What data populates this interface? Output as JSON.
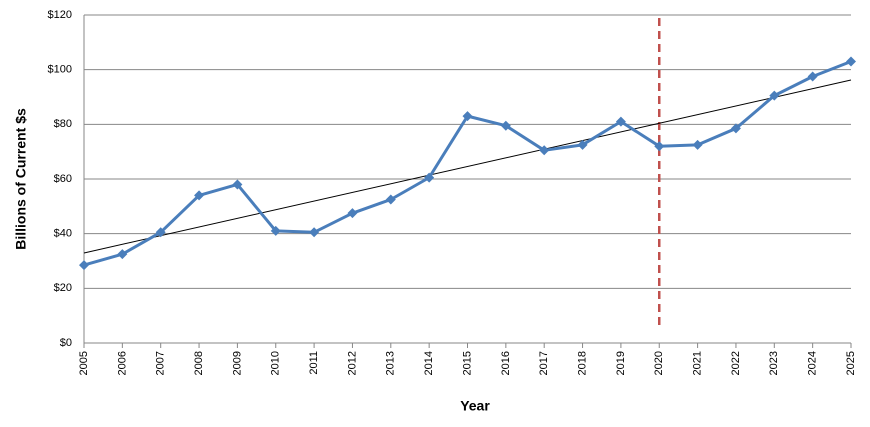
{
  "chart_data": {
    "type": "line",
    "x_label": "Year",
    "y_label": "Billions of Current $s",
    "categories": [
      "2005",
      "2006",
      "2007",
      "2008",
      "2009",
      "2010",
      "2011",
      "2012",
      "2013",
      "2014",
      "2015",
      "2016",
      "2017",
      "2018",
      "2019",
      "2020",
      "2021",
      "2022",
      "2023",
      "2024",
      "2025"
    ],
    "series": [
      {
        "color": "#4a7ebb",
        "values": [
          28.5,
          32.5,
          40.5,
          54,
          58,
          41,
          40.5,
          47.5,
          52.5,
          60.5,
          83,
          79.5,
          70.5,
          72.5,
          81,
          72,
          72.5,
          78.5,
          90.5,
          97.5,
          103
        ]
      }
    ],
    "ylim": [
      0,
      120
    ],
    "yticks": [
      {
        "value": 0,
        "label": "$0"
      },
      {
        "value": 20,
        "label": "$20"
      },
      {
        "value": 40,
        "label": "$40"
      },
      {
        "value": 60,
        "label": "$60"
      },
      {
        "value": 80,
        "label": "$80"
      },
      {
        "value": 100,
        "label": "$100"
      },
      {
        "value": 120,
        "label": "$120"
      }
    ],
    "grid": true,
    "trendline": {
      "kind": "linear",
      "color": "#000000"
    },
    "reference_line": {
      "category": "2020",
      "color": "#c0504d",
      "style": "dashed"
    }
  }
}
